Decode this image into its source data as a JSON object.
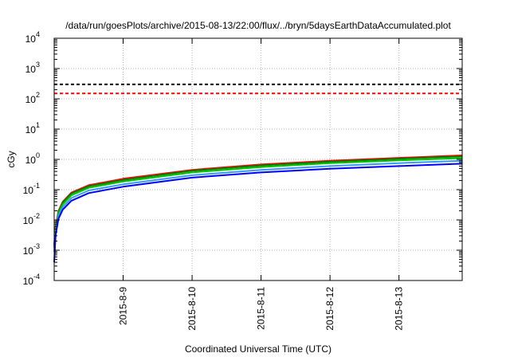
{
  "chart_data": {
    "type": "line",
    "title": "/data/run/goesPlots/archive/2015-08-13/22:00/flux/../bryn/5daysEarthDataAccumulated.plot",
    "xlabel": "Coordinated Universal Time (UTC)",
    "ylabel": "cGy",
    "x_range": [
      "2015-08-08T00:00",
      "2015-08-13T22:00"
    ],
    "x_ticks": [
      "2015-8-9",
      "2015-8-10",
      "2015-8-11",
      "2015-8-12",
      "2015-8-13"
    ],
    "x_tick_dates": [
      "2015-08-09",
      "2015-08-10",
      "2015-08-11",
      "2015-08-12",
      "2015-08-13"
    ],
    "y_scale": "log",
    "ylim": [
      0.0001,
      10000
    ],
    "y_ticks": [
      {
        "base": "10",
        "exp": "-4",
        "value": 0.0001
      },
      {
        "base": "10",
        "exp": "-3",
        "value": 0.001
      },
      {
        "base": "10",
        "exp": "-2",
        "value": 0.01
      },
      {
        "base": "10",
        "exp": "-1",
        "value": 0.1
      },
      {
        "base": "10",
        "exp": "0",
        "value": 1
      },
      {
        "base": "10",
        "exp": "1",
        "value": 10
      },
      {
        "base": "10",
        "exp": "2",
        "value": 100
      },
      {
        "base": "10",
        "exp": "3",
        "value": 1000
      },
      {
        "base": "10",
        "exp": "4",
        "value": 10000
      }
    ],
    "grid": true,
    "thresholds": [
      {
        "value": 300,
        "color": "#000000"
      },
      {
        "value": 150,
        "color": "#ff0000"
      }
    ],
    "series": [
      {
        "color": "#ff0000",
        "x": [
          "2015-08-08T00:00",
          "2015-08-08T00:30",
          "2015-08-08T01:30",
          "2015-08-08T03:00",
          "2015-08-08T06:00",
          "2015-08-08T12:00",
          "2015-08-09T00:00",
          "2015-08-10T00:00",
          "2015-08-11T00:00",
          "2015-08-12T00:00",
          "2015-08-13T00:00",
          "2015-08-13T22:00"
        ],
        "values": [
          0.0015,
          0.006,
          0.02,
          0.04,
          0.08,
          0.14,
          0.23,
          0.45,
          0.68,
          0.9,
          1.12,
          1.35
        ]
      },
      {
        "color": "#008000",
        "x": [
          "2015-08-08T00:00",
          "2015-08-08T00:30",
          "2015-08-08T01:30",
          "2015-08-08T03:00",
          "2015-08-08T06:00",
          "2015-08-08T12:00",
          "2015-08-09T00:00",
          "2015-08-10T00:00",
          "2015-08-11T00:00",
          "2015-08-12T00:00",
          "2015-08-13T00:00",
          "2015-08-13T22:00"
        ],
        "values": [
          0.0014,
          0.0055,
          0.019,
          0.038,
          0.075,
          0.13,
          0.21,
          0.42,
          0.63,
          0.84,
          1.05,
          1.25
        ]
      },
      {
        "color": "#00c000",
        "x": [
          "2015-08-08T00:00",
          "2015-08-08T00:30",
          "2015-08-08T01:30",
          "2015-08-08T03:00",
          "2015-08-08T06:00",
          "2015-08-08T12:00",
          "2015-08-09T00:00",
          "2015-08-10T00:00",
          "2015-08-11T00:00",
          "2015-08-12T00:00",
          "2015-08-13T00:00",
          "2015-08-13T22:00"
        ],
        "values": [
          0.0012,
          0.005,
          0.017,
          0.033,
          0.065,
          0.115,
          0.185,
          0.37,
          0.56,
          0.75,
          0.93,
          1.1
        ]
      },
      {
        "color": "#3399ff",
        "x": [
          "2015-08-08T00:00",
          "2015-08-08T00:30",
          "2015-08-08T01:30",
          "2015-08-08T03:00",
          "2015-08-08T06:00",
          "2015-08-08T12:00",
          "2015-08-09T00:00",
          "2015-08-10T00:00",
          "2015-08-11T00:00",
          "2015-08-12T00:00",
          "2015-08-13T00:00",
          "2015-08-13T22:00"
        ],
        "values": [
          0.0009,
          0.004,
          0.014,
          0.027,
          0.053,
          0.094,
          0.15,
          0.3,
          0.45,
          0.6,
          0.75,
          0.9
        ]
      },
      {
        "color": "#0000ff",
        "x": [
          "2015-08-08T00:00",
          "2015-08-08T00:30",
          "2015-08-08T01:30",
          "2015-08-08T03:00",
          "2015-08-08T06:00",
          "2015-08-08T12:00",
          "2015-08-09T00:00",
          "2015-08-10T00:00",
          "2015-08-11T00:00",
          "2015-08-12T00:00",
          "2015-08-13T00:00",
          "2015-08-13T22:00"
        ],
        "values": [
          0.0004,
          0.0032,
          0.011,
          0.022,
          0.043,
          0.077,
          0.125,
          0.25,
          0.37,
          0.49,
          0.6,
          0.72
        ]
      }
    ]
  }
}
